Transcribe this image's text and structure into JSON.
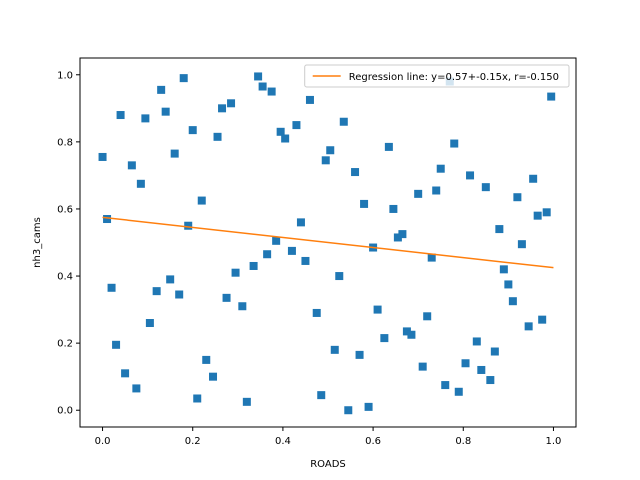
{
  "chart_data": {
    "type": "scatter",
    "xlabel": "ROADS",
    "ylabel": "nh3_cams",
    "xlim": [
      -0.05,
      1.05
    ],
    "ylim": [
      -0.05,
      1.05
    ],
    "x_ticks": [
      "0.0",
      "0.2",
      "0.4",
      "0.6",
      "0.8",
      "1.0"
    ],
    "y_ticks": [
      "0.0",
      "0.2",
      "0.4",
      "0.6",
      "0.8",
      "1.0"
    ],
    "grid": false,
    "legend_position": "top-right",
    "colors": {
      "points": "#1f77b4",
      "line": "#ff7f0e"
    },
    "points": [
      [
        0.0,
        0.755
      ],
      [
        0.01,
        0.57
      ],
      [
        0.02,
        0.365
      ],
      [
        0.03,
        0.195
      ],
      [
        0.04,
        0.88
      ],
      [
        0.05,
        0.11
      ],
      [
        0.065,
        0.73
      ],
      [
        0.075,
        0.065
      ],
      [
        0.085,
        0.675
      ],
      [
        0.095,
        0.87
      ],
      [
        0.105,
        0.26
      ],
      [
        0.12,
        0.355
      ],
      [
        0.13,
        0.955
      ],
      [
        0.14,
        0.89
      ],
      [
        0.15,
        0.39
      ],
      [
        0.16,
        0.765
      ],
      [
        0.17,
        0.345
      ],
      [
        0.18,
        0.99
      ],
      [
        0.19,
        0.55
      ],
      [
        0.2,
        0.835
      ],
      [
        0.21,
        0.035
      ],
      [
        0.22,
        0.625
      ],
      [
        0.23,
        0.15
      ],
      [
        0.245,
        0.1
      ],
      [
        0.255,
        0.815
      ],
      [
        0.265,
        0.9
      ],
      [
        0.275,
        0.335
      ],
      [
        0.285,
        0.915
      ],
      [
        0.295,
        0.41
      ],
      [
        0.31,
        0.31
      ],
      [
        0.32,
        0.025
      ],
      [
        0.335,
        0.43
      ],
      [
        0.345,
        0.995
      ],
      [
        0.355,
        0.965
      ],
      [
        0.365,
        0.465
      ],
      [
        0.375,
        0.95
      ],
      [
        0.385,
        0.505
      ],
      [
        0.395,
        0.83
      ],
      [
        0.405,
        0.81
      ],
      [
        0.42,
        0.475
      ],
      [
        0.43,
        0.85
      ],
      [
        0.44,
        0.56
      ],
      [
        0.45,
        0.445
      ],
      [
        0.46,
        0.925
      ],
      [
        0.475,
        0.29
      ],
      [
        0.485,
        0.045
      ],
      [
        0.495,
        0.745
      ],
      [
        0.505,
        0.775
      ],
      [
        0.515,
        0.18
      ],
      [
        0.525,
        0.4
      ],
      [
        0.535,
        0.86
      ],
      [
        0.545,
        0.0
      ],
      [
        0.56,
        0.71
      ],
      [
        0.57,
        0.165
      ],
      [
        0.58,
        0.615
      ],
      [
        0.59,
        0.01
      ],
      [
        0.6,
        0.485
      ],
      [
        0.61,
        0.3
      ],
      [
        0.625,
        0.215
      ],
      [
        0.635,
        0.785
      ],
      [
        0.645,
        0.6
      ],
      [
        0.655,
        0.515
      ],
      [
        0.665,
        0.525
      ],
      [
        0.675,
        0.235
      ],
      [
        0.685,
        0.225
      ],
      [
        0.7,
        0.645
      ],
      [
        0.71,
        0.13
      ],
      [
        0.72,
        0.28
      ],
      [
        0.73,
        0.455
      ],
      [
        0.74,
        0.655
      ],
      [
        0.75,
        0.72
      ],
      [
        0.76,
        0.075
      ],
      [
        0.77,
        0.98
      ],
      [
        0.78,
        0.795
      ],
      [
        0.79,
        0.055
      ],
      [
        0.805,
        0.14
      ],
      [
        0.815,
        0.7
      ],
      [
        0.83,
        0.205
      ],
      [
        0.84,
        0.12
      ],
      [
        0.85,
        0.665
      ],
      [
        0.86,
        0.09
      ],
      [
        0.87,
        0.175
      ],
      [
        0.88,
        0.54
      ],
      [
        0.89,
        0.42
      ],
      [
        0.9,
        0.375
      ],
      [
        0.91,
        0.325
      ],
      [
        0.92,
        0.635
      ],
      [
        0.93,
        0.495
      ],
      [
        0.945,
        0.25
      ],
      [
        0.955,
        0.69
      ],
      [
        0.965,
        0.58
      ],
      [
        0.975,
        0.27
      ],
      [
        0.985,
        0.59
      ],
      [
        0.995,
        0.935
      ]
    ],
    "regression": {
      "label": "Regression line: y=0.57+-0.15x, r=-0.150",
      "x": [
        0.0,
        1.0
      ],
      "y": [
        0.575,
        0.425
      ]
    }
  }
}
